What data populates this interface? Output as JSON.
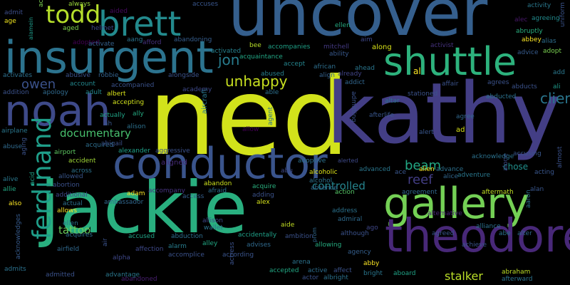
{
  "words": [
    {
      "text": "ned",
      "color": "#d2e21b"
    },
    {
      "text": "kathy",
      "color": "#433e85"
    },
    {
      "text": "uncover",
      "color": "#355f8d"
    },
    {
      "text": "jackie",
      "color": "#29af7f"
    },
    {
      "text": "insurgent",
      "color": "#2c738e"
    },
    {
      "text": "gallery",
      "color": "#74d055"
    },
    {
      "text": "theodore",
      "color": "#482878"
    },
    {
      "text": "conductor",
      "color": "#3a548c"
    },
    {
      "text": "noah",
      "color": "#3e4a89"
    },
    {
      "text": "shuttle",
      "color": "#2db27d"
    },
    {
      "text": "brett",
      "color": "#238a8d"
    },
    {
      "text": "todd",
      "color": "#b5de2b"
    },
    {
      "text": "ferdinand",
      "color": "#1f9e89"
    },
    {
      "text": "unhappy",
      "color": "#c8e020"
    },
    {
      "text": "documentary",
      "color": "#48c16e"
    },
    {
      "text": "owen",
      "color": "#3b528b"
    },
    {
      "text": "jon",
      "color": "#287c8e"
    },
    {
      "text": "client",
      "color": "#2a768e"
    },
    {
      "text": "reef",
      "color": "#433e85"
    },
    {
      "text": "beam",
      "color": "#22a884"
    },
    {
      "text": "controlled",
      "color": "#25848e"
    },
    {
      "text": "tattoo",
      "color": "#6ccd5a"
    },
    {
      "text": "stalker",
      "color": "#bade28"
    },
    {
      "text": "chose",
      "color": "#21908d"
    },
    {
      "text": "al",
      "color": "#fde725"
    },
    {
      "text": "aircraft",
      "color": "#2a778e"
    },
    {
      "text": "aligned",
      "color": "#472c7a"
    },
    {
      "text": "adopted",
      "color": "#440154"
    },
    {
      "text": "activated",
      "color": "#26818e"
    },
    {
      "text": "always",
      "color": "#9bd93c"
    },
    {
      "text": "aided",
      "color": "#460a5d"
    },
    {
      "text": "aang",
      "color": "#2c728e"
    },
    {
      "text": "afford",
      "color": "#46327e"
    },
    {
      "text": "abandoning",
      "color": "#365d8d"
    },
    {
      "text": "accuses",
      "color": "#39568c"
    },
    {
      "text": "act",
      "color": "#7ad151"
    },
    {
      "text": "admit",
      "color": "#3d4e8a"
    },
    {
      "text": "age",
      "color": "#f1e51d"
    },
    {
      "text": "alamein",
      "color": "#1e9b8a"
    },
    {
      "text": "aged",
      "color": "#7fd34e"
    },
    {
      "text": "helmet",
      "color": "#3e4989"
    },
    {
      "text": "activate",
      "color": "#34618d"
    },
    {
      "text": "bee",
      "color": "#b8de29"
    },
    {
      "text": "accompanies",
      "color": "#1fa187"
    },
    {
      "text": "mitchell",
      "color": "#443a83"
    },
    {
      "text": "along",
      "color": "#dae319"
    },
    {
      "text": "aim",
      "color": "#3f4788"
    },
    {
      "text": "ellen",
      "color": "#25ab82"
    },
    {
      "text": "activist",
      "color": "#46327e"
    },
    {
      "text": "activity",
      "color": "#2a788e"
    },
    {
      "text": "alec",
      "color": "#48186a"
    },
    {
      "text": "agreeing",
      "color": "#228b8d"
    },
    {
      "text": "abruptly",
      "color": "#29af7f"
    },
    {
      "text": "abbey",
      "color": "#fde725"
    },
    {
      "text": "alias",
      "color": "#2e6e8e"
    },
    {
      "text": "uniform",
      "color": "#3a538b"
    },
    {
      "text": "advice",
      "color": "#375b8d"
    },
    {
      "text": "adopt",
      "color": "#7ad151"
    },
    {
      "text": "add",
      "color": "#2a788e"
    },
    {
      "text": "ali",
      "color": "#1f9a8a"
    },
    {
      "text": "acquaintance",
      "color": "#22a785"
    },
    {
      "text": "ability",
      "color": "#38588c"
    },
    {
      "text": "african",
      "color": "#2e6f8e"
    },
    {
      "text": "accept",
      "color": "#25858e"
    },
    {
      "text": "abused",
      "color": "#27808e"
    },
    {
      "text": "align",
      "color": "#34618d"
    },
    {
      "text": "already",
      "color": "#414487"
    },
    {
      "text": "ahead",
      "color": "#2a768e"
    },
    {
      "text": "addict",
      "color": "#31668e"
    },
    {
      "text": "alongside",
      "color": "#3b528b"
    },
    {
      "text": "academy",
      "color": "#3e4989"
    },
    {
      "text": "able",
      "color": "#2d708e"
    },
    {
      "text": "activates",
      "color": "#2d708e"
    },
    {
      "text": "abusive",
      "color": "#3b528b"
    },
    {
      "text": "robbie",
      "color": "#33628d"
    },
    {
      "text": "addition",
      "color": "#3b528b"
    },
    {
      "text": "account",
      "color": "#23888e"
    },
    {
      "text": "apology",
      "color": "#306a8e"
    },
    {
      "text": "adult",
      "color": "#23888e"
    },
    {
      "text": "albert",
      "color": "#d8e219"
    },
    {
      "text": "accompanied",
      "color": "#3b528b"
    },
    {
      "text": "accepting",
      "color": "#d0e11c"
    },
    {
      "text": "actually",
      "color": "#20a486"
    },
    {
      "text": "ally",
      "color": "#25ab82"
    },
    {
      "text": "ah",
      "color": "#39568c"
    },
    {
      "text": "alison",
      "color": "#2d718e"
    },
    {
      "text": "airplane",
      "color": "#2a778e"
    },
    {
      "text": "abuse",
      "color": "#306a8e"
    },
    {
      "text": "aging",
      "color": "#3b528b"
    },
    {
      "text": "airport",
      "color": "#5ec962"
    },
    {
      "text": "acquired",
      "color": "#2e6e8e"
    },
    {
      "text": "abigail",
      "color": "#3b518b"
    },
    {
      "text": "alexander",
      "color": "#1fa188"
    },
    {
      "text": "aggressive",
      "color": "#3b518b"
    },
    {
      "text": "accident",
      "color": "#a2da37"
    },
    {
      "text": "allowed",
      "color": "#39568c"
    },
    {
      "text": "across",
      "color": "#2c728e"
    },
    {
      "text": "alive",
      "color": "#2a788e"
    },
    {
      "text": "acid",
      "color": "#1fa287"
    },
    {
      "text": "allie",
      "color": "#22a884"
    },
    {
      "text": "abortion",
      "color": "#3b518b"
    },
    {
      "text": "additional",
      "color": "#3e4989"
    },
    {
      "text": "adam",
      "color": "#fde725"
    },
    {
      "text": "accompany",
      "color": "#46337f"
    },
    {
      "text": "afraid",
      "color": "#2e6e8e"
    },
    {
      "text": "abandon",
      "color": "#cde11d"
    },
    {
      "text": "access",
      "color": "#355f8d"
    },
    {
      "text": "acquire",
      "color": "#2ab07f"
    },
    {
      "text": "adding",
      "color": "#3b528b"
    },
    {
      "text": "alex",
      "color": "#d5e21a"
    },
    {
      "text": "also",
      "color": "#fde725"
    },
    {
      "text": "actual",
      "color": "#2d708e"
    },
    {
      "text": "allows",
      "color": "#fde725"
    },
    {
      "text": "ambassador",
      "color": "#31678e"
    },
    {
      "text": "acknowledges",
      "color": "#375b8d"
    },
    {
      "text": "ellen",
      "color": "#2a768e"
    },
    {
      "text": "acquires",
      "color": "#2e6e8e"
    },
    {
      "text": "air",
      "color": "#3b528b"
    },
    {
      "text": "airfield",
      "color": "#30698e"
    },
    {
      "text": "alpha",
      "color": "#3f4889"
    },
    {
      "text": "accused",
      "color": "#20a386"
    },
    {
      "text": "abduction",
      "color": "#2e6e8e"
    },
    {
      "text": "affection",
      "color": "#3e4989"
    },
    {
      "text": "alarm",
      "color": "#287d8e"
    },
    {
      "text": "accomplice",
      "color": "#3b528b"
    },
    {
      "text": "alley",
      "color": "#22a884"
    },
    {
      "text": "according",
      "color": "#3a548c"
    },
    {
      "text": "accidentally",
      "color": "#1fa188"
    },
    {
      "text": "advises",
      "color": "#306a8e"
    },
    {
      "text": "ambition",
      "color": "#3b528b"
    },
    {
      "text": "allowing",
      "color": "#26ad81"
    },
    {
      "text": "accepted",
      "color": "#22a884"
    },
    {
      "text": "arena",
      "color": "#2c738e"
    },
    {
      "text": "admits",
      "color": "#2c728e"
    },
    {
      "text": "admitted",
      "color": "#3b528b"
    },
    {
      "text": "advantage",
      "color": "#2a788e"
    },
    {
      "text": "abandoned",
      "color": "#481f70"
    },
    {
      "text": "actress",
      "color": "#3b528b"
    },
    {
      "text": "wallet",
      "color": "#2c738e"
    },
    {
      "text": "allison",
      "color": "#3f4788"
    },
    {
      "text": "aide",
      "color": "#c2df23"
    },
    {
      "text": "prom",
      "color": "#31688e"
    },
    {
      "text": "actor",
      "color": "#3b528b"
    },
    {
      "text": "albright",
      "color": "#2c728e"
    },
    {
      "text": "active",
      "color": "#2e6e8e"
    },
    {
      "text": "affect",
      "color": "#3b528b"
    },
    {
      "text": "agency",
      "color": "#355f8d"
    },
    {
      "text": "although",
      "color": "#3b528b"
    },
    {
      "text": "abby",
      "color": "#fde725"
    },
    {
      "text": "bright",
      "color": "#2a778e"
    },
    {
      "text": "aboard",
      "color": "#20a386"
    },
    {
      "text": "admiral",
      "color": "#2f6b8e"
    },
    {
      "text": "ago",
      "color": "#3f4788"
    },
    {
      "text": "address",
      "color": "#2c738e"
    },
    {
      "text": "action",
      "color": "#55c667"
    },
    {
      "text": "absence",
      "color": "#306a8e"
    },
    {
      "text": "alcohol",
      "color": "#2c728e"
    },
    {
      "text": "alcoholic",
      "color": "#dde318"
    },
    {
      "text": "alerted",
      "color": "#3e4a89"
    },
    {
      "text": "advanced",
      "color": "#2a778e"
    },
    {
      "text": "ace",
      "color": "#39568c"
    },
    {
      "text": "alien",
      "color": "#fde725"
    },
    {
      "text": "alice",
      "color": "#31668e"
    },
    {
      "text": "advance",
      "color": "#2d708e"
    },
    {
      "text": "adventure",
      "color": "#2a788e"
    },
    {
      "text": "agreement",
      "color": "#31688e"
    },
    {
      "text": "aftermath",
      "color": "#c0df25"
    },
    {
      "text": "aaron",
      "color": "#2c728e"
    },
    {
      "text": "alliance",
      "color": "#2c728e"
    },
    {
      "text": "abe",
      "color": "#2c728e"
    },
    {
      "text": "alter",
      "color": "#31688e"
    },
    {
      "text": "agreed",
      "color": "#39568c"
    },
    {
      "text": "achieve",
      "color": "#3a548c"
    },
    {
      "text": "abraham",
      "color": "#bddf26"
    },
    {
      "text": "afterward",
      "color": "#2c728e"
    },
    {
      "text": "acting",
      "color": "#39568c"
    },
    {
      "text": "alan",
      "color": "#39568c"
    },
    {
      "text": "almost",
      "color": "#3b528b"
    },
    {
      "text": "alone",
      "color": "#3e4989"
    },
    {
      "text": "ad",
      "color": "#d8e219"
    },
    {
      "text": "agree",
      "color": "#31688e"
    },
    {
      "text": "alert",
      "color": "#39568c"
    },
    {
      "text": "acknowledge",
      "color": "#2c728e"
    },
    {
      "text": "accusing",
      "color": "#39568c"
    },
    {
      "text": "afterlife",
      "color": "#39568c"
    },
    {
      "text": "altar",
      "color": "#2c728e"
    },
    {
      "text": "stationed",
      "color": "#3b528b"
    },
    {
      "text": "abu",
      "color": "#3e4989"
    },
    {
      "text": "adoptive",
      "color": "#2c728e"
    },
    {
      "text": "allow",
      "color": "#440154"
    },
    {
      "text": "agent",
      "color": "#2c728e"
    },
    {
      "text": "affair",
      "color": "#3b528b"
    },
    {
      "text": "agrees",
      "color": "#3b528b"
    },
    {
      "text": "abducted",
      "color": "#2c728e"
    },
    {
      "text": "abducts",
      "color": "#3b528b"
    },
    {
      "text": "admitting",
      "color": "#3b528b"
    },
    {
      "text": "alternative",
      "color": "#482475"
    }
  ]
}
